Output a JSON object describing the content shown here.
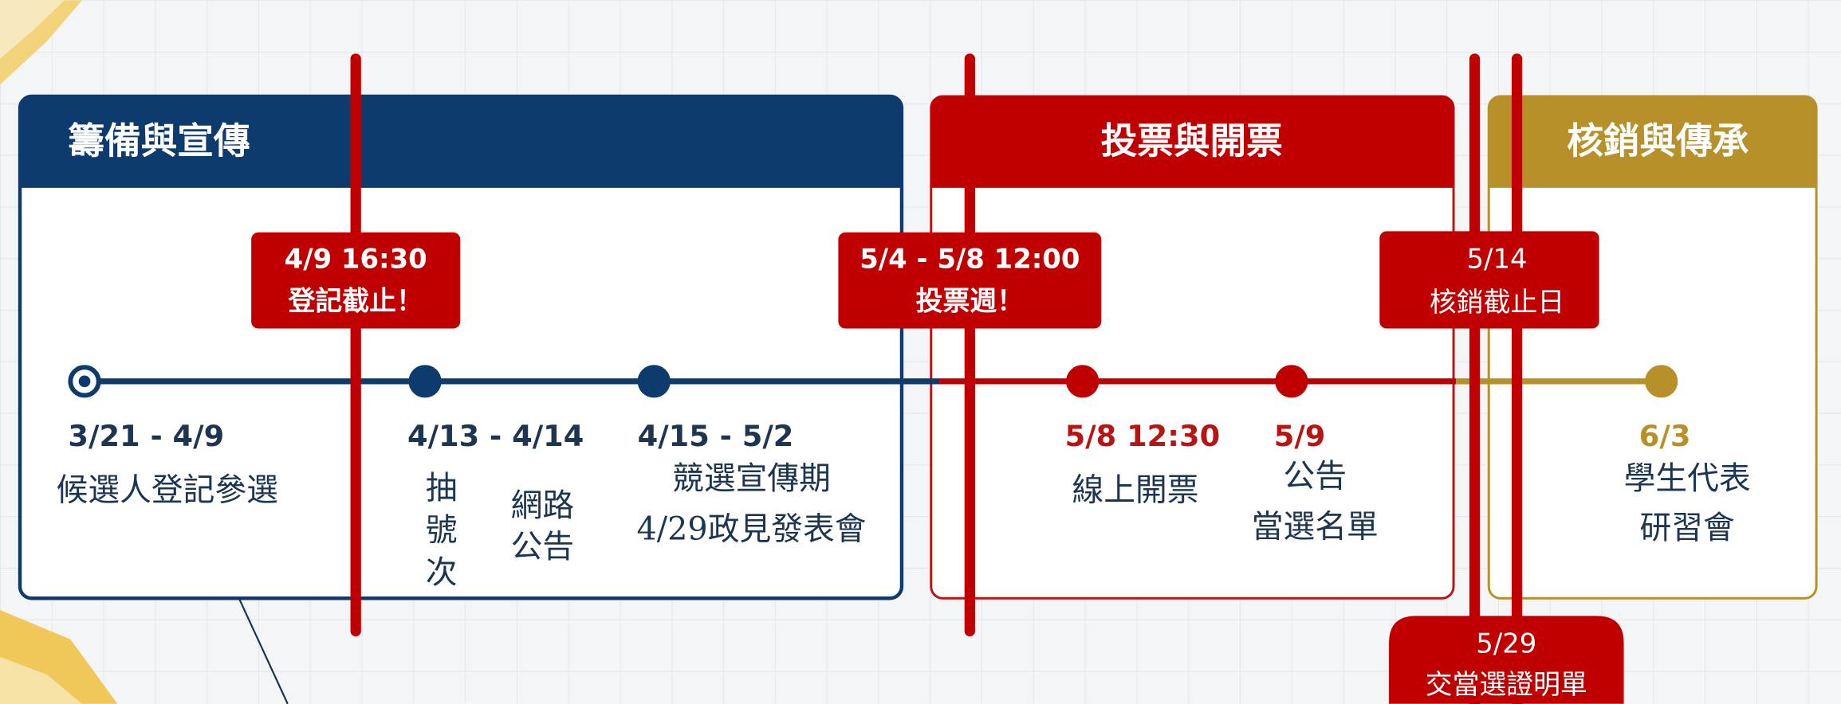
{
  "sections": [
    {
      "title": "籌備與宣傳"
    },
    {
      "title": "投票與開票"
    },
    {
      "title": "核銷與傳承"
    }
  ],
  "deadlines": [
    {
      "lines": [
        "4/9 16:30",
        "登記截止！"
      ]
    },
    {
      "lines": [
        "5/4 - 5/8 12:00",
        "投票週！"
      ]
    },
    {
      "lines": [
        "5/14",
        "核銷截止日"
      ]
    },
    {
      "lines": [
        "5/29",
        "交當選證明單"
      ]
    }
  ],
  "events": [
    {
      "date": "3/21 - 4/9",
      "groups": [
        [
          "候選人登記參選"
        ]
      ]
    },
    {
      "date": "4/13 - 4/14",
      "groups": [
        [
          "抽",
          "號",
          "次"
        ],
        [
          "網路",
          "公告"
        ]
      ]
    },
    {
      "date": "4/15 - 5/2",
      "groups": [
        [
          "競選宣傳期",
          "4/29政見發表會"
        ]
      ]
    },
    {
      "date": "5/8 12:30",
      "groups": [
        [
          "線上開票"
        ]
      ]
    },
    {
      "date": "5/9",
      "groups": [
        [
          "公告",
          "當選名單"
        ]
      ]
    },
    {
      "date": "6/3",
      "groups": [
        [
          "學生代表",
          "研習會"
        ]
      ]
    }
  ]
}
